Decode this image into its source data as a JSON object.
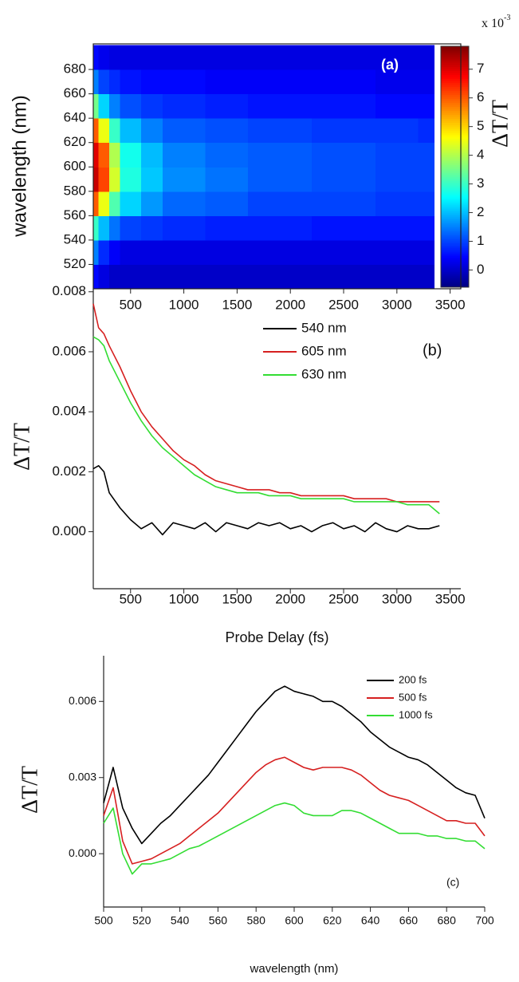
{
  "chart_data": [
    {
      "type": "heatmap",
      "annotation": "(a)",
      "ylabel": "wavelength (nm)",
      "x_edges": [
        150,
        200,
        300,
        400,
        600,
        800,
        1200,
        1600,
        2200,
        2800,
        3200,
        3350
      ],
      "y_edges": [
        500,
        520,
        540,
        560,
        580,
        600,
        620,
        640,
        660,
        680,
        700
      ],
      "z": [
        [
          0.5,
          0.2,
          0,
          0,
          0,
          0,
          0,
          0,
          0,
          0,
          0
        ],
        [
          1.5,
          0.8,
          0.4,
          0.2,
          0.2,
          0.2,
          0.2,
          0.2,
          0.2,
          0.2,
          0.2
        ],
        [
          3.0,
          2.0,
          1.4,
          1.0,
          0.9,
          0.8,
          0.7,
          0.7,
          0.6,
          0.6,
          0.6
        ],
        [
          6.0,
          4.5,
          3.2,
          2.2,
          1.7,
          1.3,
          1.2,
          1.0,
          1.0,
          0.9,
          0.9
        ],
        [
          7.2,
          6.2,
          4.3,
          2.8,
          2.1,
          1.6,
          1.4,
          1.2,
          1.1,
          1.0,
          1.0
        ],
        [
          7.0,
          6.0,
          4.0,
          2.7,
          2.0,
          1.5,
          1.3,
          1.2,
          1.1,
          1.0,
          1.0
        ],
        [
          6.0,
          4.5,
          3.0,
          2.0,
          1.5,
          1.2,
          1.1,
          1.0,
          0.9,
          0.9,
          0.8
        ],
        [
          3.5,
          2.2,
          1.5,
          1.1,
          0.9,
          0.8,
          0.7,
          0.6,
          0.6,
          0.5,
          0.5
        ],
        [
          1.5,
          1.0,
          0.8,
          0.6,
          0.5,
          0.5,
          0.4,
          0.4,
          0.4,
          0.3,
          0.3
        ],
        [
          0.5,
          0.3,
          0.2,
          0.2,
          0.2,
          0.2,
          0.2,
          0.2,
          0.2,
          0.2,
          0.2
        ]
      ],
      "xlim": [
        150,
        3600
      ],
      "ylim": [
        500,
        701
      ],
      "xticks": [
        500,
        1000,
        1500,
        2000,
        2500,
        3000,
        3500
      ],
      "yticks": [
        520,
        540,
        560,
        580,
        600,
        620,
        640,
        660,
        680
      ],
      "colorbar": {
        "label": "ΔT/T",
        "scale": "x 10",
        "scale_exponent": "-3",
        "zlim": [
          -0.6,
          7.8
        ],
        "ticks": [
          0,
          1,
          2,
          3,
          4,
          5,
          6,
          7
        ]
      }
    },
    {
      "type": "line",
      "annotation": "(b)",
      "xlabel": "Probe Delay (fs)",
      "ylabel": "ΔT/T",
      "x": [
        150,
        200,
        250,
        300,
        400,
        500,
        600,
        700,
        800,
        900,
        1000,
        1100,
        1200,
        1300,
        1400,
        1500,
        1600,
        1700,
        1800,
        1900,
        2000,
        2100,
        2200,
        2300,
        2400,
        2500,
        2600,
        2700,
        2800,
        2900,
        3000,
        3100,
        3200,
        3300,
        3400
      ],
      "series": [
        {
          "name": "540 nm",
          "color": "#000000",
          "values": [
            0.0021,
            0.0022,
            0.002,
            0.0013,
            0.0008,
            0.0004,
            0.0001,
            0.0003,
            -0.0001,
            0.0003,
            0.0002,
            0.0001,
            0.0003,
            0.0,
            0.0003,
            0.0002,
            0.0001,
            0.0003,
            0.0002,
            0.0003,
            0.0001,
            0.0002,
            0.0,
            0.0002,
            0.0003,
            0.0001,
            0.0002,
            0.0,
            0.0003,
            0.0001,
            0.0,
            0.0002,
            0.0001,
            0.0001,
            0.0002
          ]
        },
        {
          "name": "605 nm",
          "color": "#d62020",
          "values": [
            0.0076,
            0.0068,
            0.0066,
            0.0062,
            0.0055,
            0.0047,
            0.004,
            0.0035,
            0.0031,
            0.0027,
            0.0024,
            0.0022,
            0.0019,
            0.0017,
            0.0016,
            0.0015,
            0.0014,
            0.0014,
            0.0014,
            0.0013,
            0.0013,
            0.0012,
            0.0012,
            0.0012,
            0.0012,
            0.0012,
            0.0011,
            0.0011,
            0.0011,
            0.0011,
            0.001,
            0.001,
            0.001,
            0.001,
            0.001
          ]
        },
        {
          "name": "630 nm",
          "color": "#33dd33",
          "values": [
            0.0065,
            0.0064,
            0.0062,
            0.0057,
            0.005,
            0.0043,
            0.0037,
            0.0032,
            0.0028,
            0.0025,
            0.0022,
            0.0019,
            0.0017,
            0.0015,
            0.0014,
            0.0013,
            0.0013,
            0.0013,
            0.0012,
            0.0012,
            0.0012,
            0.0011,
            0.0011,
            0.0011,
            0.0011,
            0.0011,
            0.001,
            0.001,
            0.001,
            0.001,
            0.001,
            0.0009,
            0.0009,
            0.0009,
            0.0006
          ]
        }
      ],
      "xlim": [
        150,
        3600
      ],
      "ylim": [
        -0.0019,
        0.0081
      ],
      "xticks": [
        500,
        1000,
        1500,
        2000,
        2500,
        3000,
        3500
      ],
      "yticks": [
        {
          "value": 0,
          "label": "0.000"
        },
        {
          "value": 0.002,
          "label": "0.002"
        },
        {
          "value": 0.004,
          "label": "0.004"
        },
        {
          "value": 0.006,
          "label": "0.006"
        },
        {
          "value": 0.008,
          "label": "0.008"
        }
      ]
    },
    {
      "type": "line",
      "annotation": "(c)",
      "xlabel": "wavelength (nm)",
      "ylabel": "ΔT/T",
      "x": [
        500,
        505,
        510,
        515,
        520,
        525,
        530,
        535,
        540,
        545,
        550,
        555,
        560,
        565,
        570,
        575,
        580,
        585,
        590,
        595,
        600,
        605,
        610,
        615,
        620,
        625,
        630,
        635,
        640,
        645,
        650,
        655,
        660,
        665,
        670,
        675,
        680,
        685,
        690,
        695,
        700
      ],
      "series": [
        {
          "name": "200 fs",
          "color": "#000000",
          "values": [
            0.002,
            0.0034,
            0.0018,
            0.001,
            0.0004,
            0.0008,
            0.0012,
            0.0015,
            0.0019,
            0.0023,
            0.0027,
            0.0031,
            0.0036,
            0.0041,
            0.0046,
            0.0051,
            0.0056,
            0.006,
            0.0064,
            0.0066,
            0.0064,
            0.0063,
            0.0062,
            0.006,
            0.006,
            0.0058,
            0.0055,
            0.0052,
            0.0048,
            0.0045,
            0.0042,
            0.004,
            0.0038,
            0.0037,
            0.0035,
            0.0032,
            0.0029,
            0.0026,
            0.0024,
            0.0023,
            0.0014
          ]
        },
        {
          "name": "500 fs",
          "color": "#d62020",
          "values": [
            0.0015,
            0.0026,
            0.0005,
            -0.0004,
            -0.0003,
            -0.0002,
            0.0,
            0.0002,
            0.0004,
            0.0007,
            0.001,
            0.0013,
            0.0016,
            0.002,
            0.0024,
            0.0028,
            0.0032,
            0.0035,
            0.0037,
            0.0038,
            0.0036,
            0.0034,
            0.0033,
            0.0034,
            0.0034,
            0.0034,
            0.0033,
            0.0031,
            0.0028,
            0.0025,
            0.0023,
            0.0022,
            0.0021,
            0.0019,
            0.0017,
            0.0015,
            0.0013,
            0.0013,
            0.0012,
            0.0012,
            0.0007
          ]
        },
        {
          "name": "1000 fs",
          "color": "#33dd33",
          "values": [
            0.0012,
            0.0018,
            0.0,
            -0.0008,
            -0.0004,
            -0.0004,
            -0.0003,
            -0.0002,
            0.0,
            0.0002,
            0.0003,
            0.0005,
            0.0007,
            0.0009,
            0.0011,
            0.0013,
            0.0015,
            0.0017,
            0.0019,
            0.002,
            0.0019,
            0.0016,
            0.0015,
            0.0015,
            0.0015,
            0.0017,
            0.0017,
            0.0016,
            0.0014,
            0.0012,
            0.001,
            0.0008,
            0.0008,
            0.0008,
            0.0007,
            0.0007,
            0.0006,
            0.0006,
            0.0005,
            0.0005,
            0.0002
          ]
        }
      ],
      "xlim": [
        500,
        700
      ],
      "ylim": [
        -0.0021,
        0.0078
      ],
      "xticks": [
        500,
        520,
        540,
        560,
        580,
        600,
        620,
        640,
        660,
        680,
        700
      ],
      "yticks": [
        {
          "value": 0,
          "label": "0.000"
        },
        {
          "value": 0.003,
          "label": "0.003"
        },
        {
          "value": 0.006,
          "label": "0.006"
        }
      ]
    }
  ]
}
